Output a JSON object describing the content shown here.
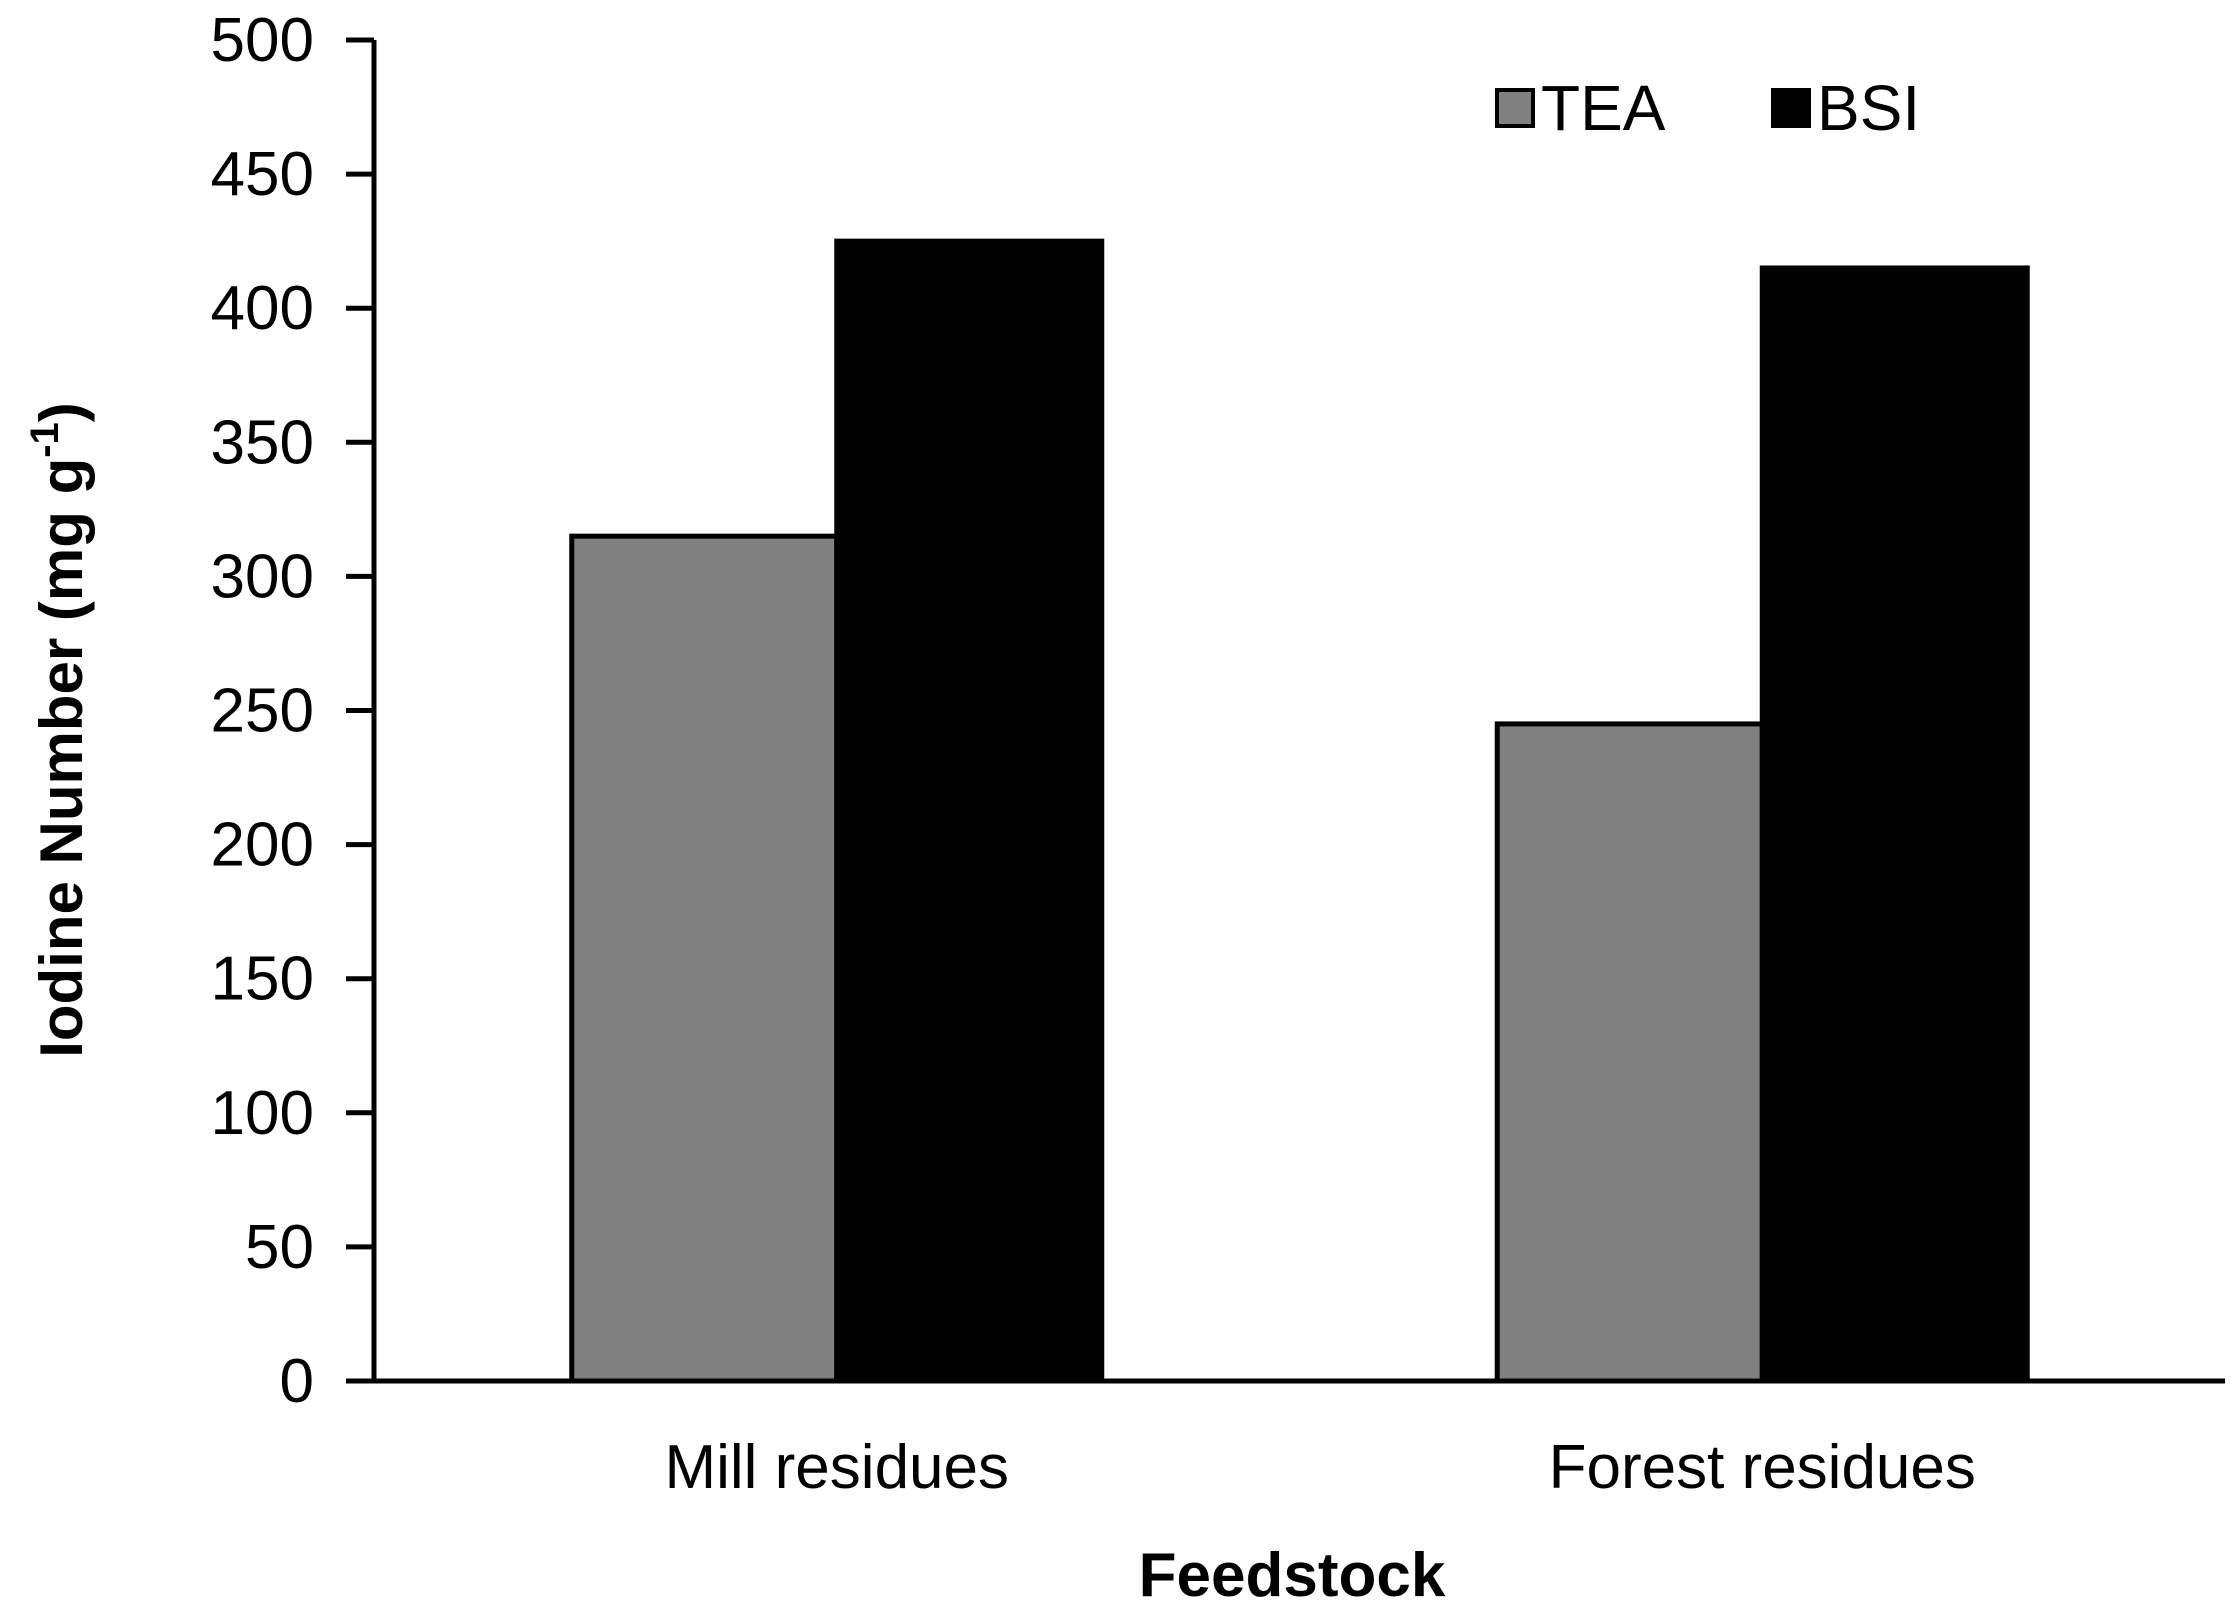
{
  "chart_data": {
    "type": "bar",
    "title": "",
    "xlabel": "Feedstock",
    "ylabel": "Iodine Number (mg g",
    "ylabel_superscript": "-1",
    "ylabel_suffix": ")",
    "categories": [
      "Mill residues",
      "Forest residues"
    ],
    "series": [
      {
        "name": "TEA",
        "color": "#808080",
        "values": [
          315,
          245
        ]
      },
      {
        "name": "BSI",
        "color": "#000000",
        "values": [
          425,
          415
        ]
      }
    ],
    "ylim": [
      0,
      500
    ],
    "yticks": [
      "0",
      "50",
      "100",
      "150",
      "200",
      "250",
      "300",
      "350",
      "400",
      "450",
      "500"
    ],
    "grid": false,
    "legend_position": "top-right"
  }
}
